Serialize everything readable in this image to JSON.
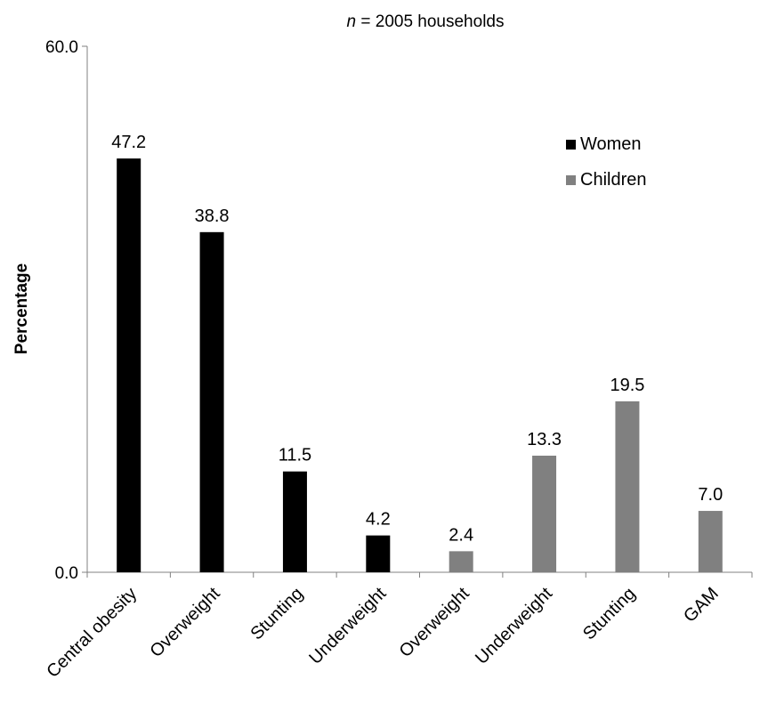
{
  "chart_data": {
    "type": "bar",
    "title_prefix": "n",
    "title_rest": " = 2005 households",
    "ylabel": "Percentage",
    "xlabel": "",
    "ylim": [
      0,
      60
    ],
    "yticks": [
      "0.0",
      "60.0"
    ],
    "legend_position": "top-right",
    "grid": false,
    "series": [
      {
        "name": "Women",
        "color": "#000000"
      },
      {
        "name": "Children",
        "color": "#808080"
      }
    ],
    "bars": [
      {
        "category": "Central obesity",
        "series": "Women",
        "value": 47.2,
        "label": "47.2"
      },
      {
        "category": "Overweight",
        "series": "Women",
        "value": 38.8,
        "label": "38.8"
      },
      {
        "category": "Stunting",
        "series": "Women",
        "value": 11.5,
        "label": "11.5"
      },
      {
        "category": "Underweight",
        "series": "Women",
        "value": 4.2,
        "label": "4.2"
      },
      {
        "category": "Overweight",
        "series": "Children",
        "value": 2.4,
        "label": "2.4"
      },
      {
        "category": "Underweight",
        "series": "Children",
        "value": 13.3,
        "label": "13.3"
      },
      {
        "category": "Stunting",
        "series": "Children",
        "value": 19.5,
        "label": "19.5"
      },
      {
        "category": "GAM",
        "series": "Children",
        "value": 7.0,
        "label": "7.0"
      }
    ]
  }
}
